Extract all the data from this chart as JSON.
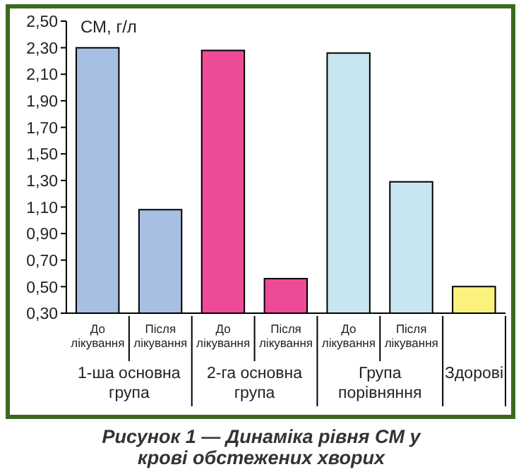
{
  "chart_data": {
    "type": "bar",
    "title": "Рисунок 1 — Динаміка рівня СМ у крові обстежених хворих",
    "ylabel": "СМ, г/л",
    "categories": [
      "До лікування",
      "Після лікування",
      "До лікування",
      "Після лікування",
      "До лікування",
      "Після лікування",
      null
    ],
    "values": [
      2.3,
      1.08,
      2.28,
      0.56,
      2.26,
      1.29,
      0.5
    ],
    "colors": [
      "#a6bfe3",
      "#a6bfe3",
      "#ee4b97",
      "#ee4b97",
      "#c6e6f0",
      "#c6e6f0",
      "#fbf27e"
    ],
    "annotations": [
      "1-ша основна група",
      "2-га основна група",
      "Група порівняння",
      "Здорові"
    ],
    "ylim": [
      0.3,
      2.5
    ],
    "yticks": [
      {
        "value": 0.3,
        "label": "0,30"
      },
      {
        "value": 0.5,
        "label": "0,50"
      },
      {
        "value": 0.7,
        "label": "0,70"
      },
      {
        "value": 0.9,
        "label": "0,90"
      },
      {
        "value": 1.1,
        "label": "1,10"
      },
      {
        "value": 1.3,
        "label": "1,30"
      },
      {
        "value": 1.5,
        "label": "1,50"
      },
      {
        "value": 1.7,
        "label": "1,70"
      },
      {
        "value": 1.9,
        "label": "1,90"
      },
      {
        "value": 2.1,
        "label": "2,10"
      },
      {
        "value": 2.3,
        "label": "2,30"
      },
      {
        "value": 2.5,
        "label": "2,50"
      }
    ],
    "grid": false,
    "legend": false
  }
}
